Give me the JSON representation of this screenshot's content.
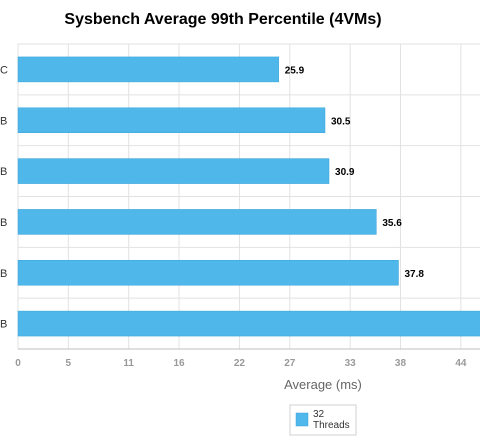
{
  "chart_data": {
    "type": "bar",
    "orientation": "horizontal",
    "title": "Sysbench Average 99th Percentile (4VMs)",
    "categories": [
      "C",
      "B",
      "B",
      "B",
      "B",
      "B"
    ],
    "series": [
      {
        "name": "32 Threads",
        "values": [
          25.9,
          30.5,
          30.9,
          35.6,
          37.8,
          46.5
        ],
        "color": "#4fb7ea"
      }
    ],
    "data_labels": [
      "25.9",
      "30.5",
      "30.9",
      "35.6",
      "37.8",
      ""
    ],
    "xlabel": "Average (ms)",
    "ylabel": "",
    "xlim": [
      0,
      45.9
    ],
    "x_ticks": [
      0,
      5,
      11,
      16,
      22,
      27,
      33,
      38,
      44
    ],
    "grid": true,
    "legend": {
      "position": "bottom-center",
      "entries": [
        {
          "lines": [
            "32",
            "Threads"
          ],
          "color": "#4fb7ea"
        }
      ]
    },
    "colors": {
      "bar": "#4fb7ea",
      "bar_edge": "#3aa3d8",
      "grid": "#e2e2e2",
      "axis": "#bfbfbf"
    }
  }
}
